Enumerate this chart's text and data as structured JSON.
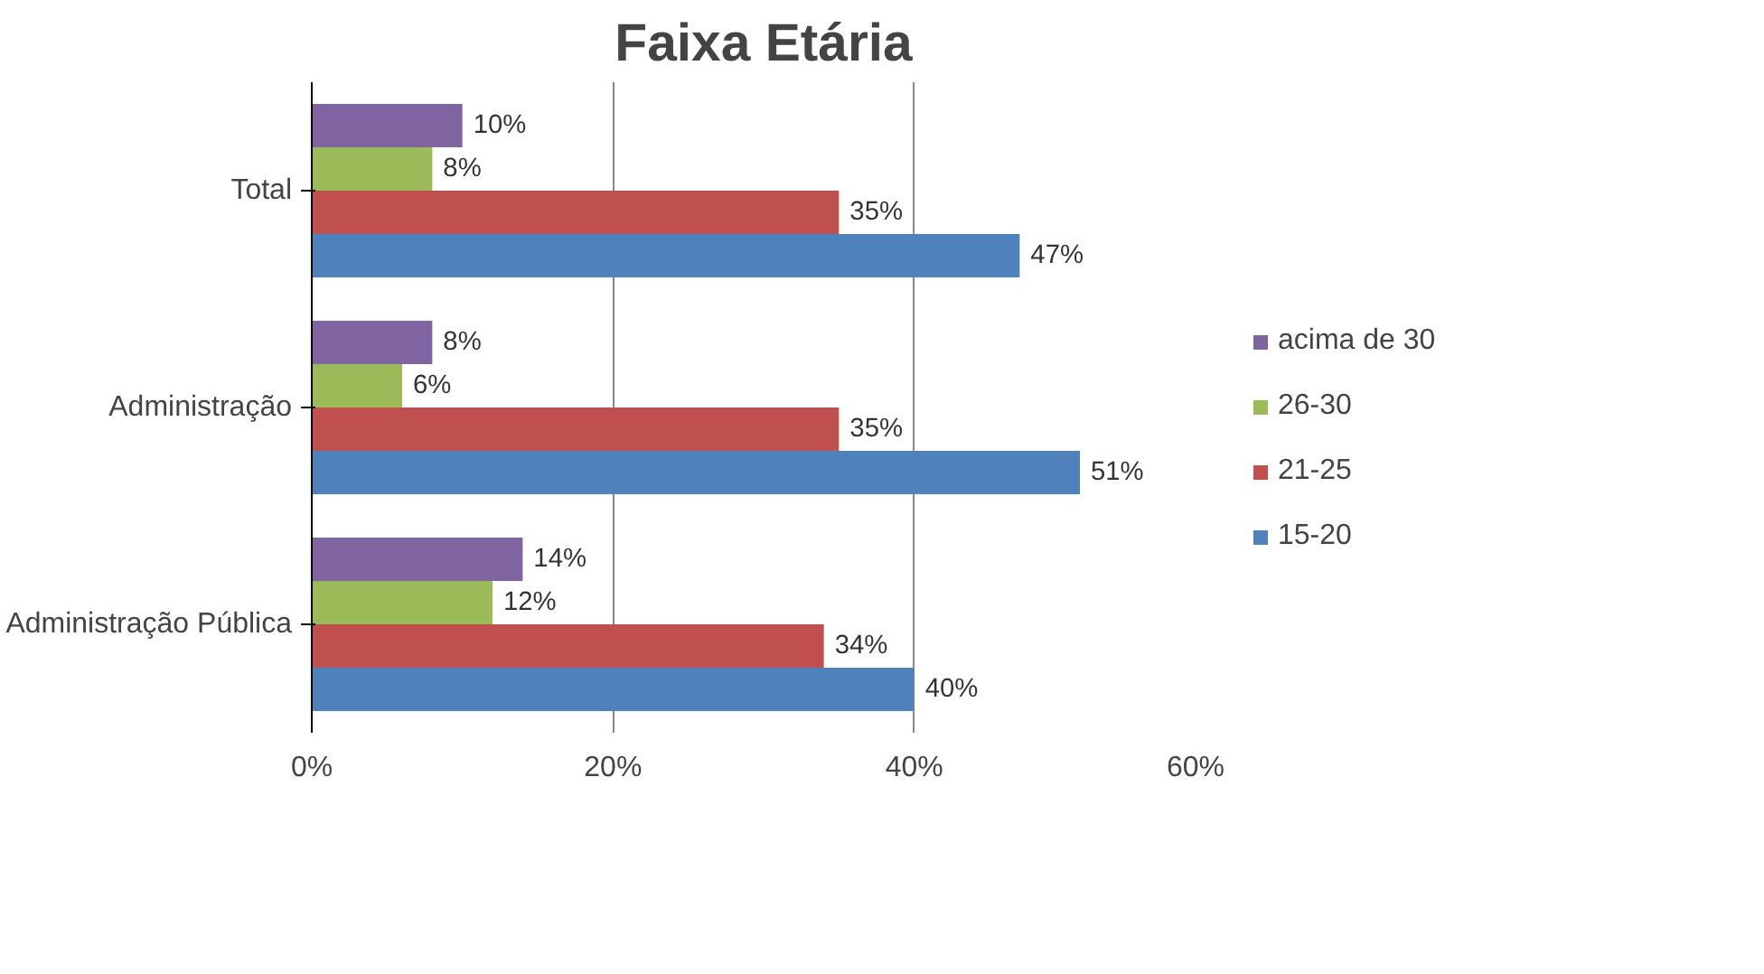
{
  "chart_data": {
    "type": "bar",
    "orientation": "horizontal",
    "title": "Faixa Etária",
    "categories": [
      "Total",
      "Administração",
      "Administração Pública"
    ],
    "series": [
      {
        "name": "acima de 30",
        "color": "#8064a2",
        "values": [
          10,
          8,
          14
        ],
        "value_labels": [
          "10%",
          "8%",
          "14%"
        ]
      },
      {
        "name": "26-30",
        "color": "#9bbb59",
        "values": [
          8,
          6,
          12
        ],
        "value_labels": [
          "8%",
          "6%",
          "12%"
        ]
      },
      {
        "name": "21-25",
        "color": "#c0504d",
        "values": [
          35,
          35,
          34
        ],
        "value_labels": [
          "35%",
          "35%",
          "34%"
        ]
      },
      {
        "name": "15-20",
        "color": "#4f81bd",
        "values": [
          47,
          51,
          40
        ],
        "value_labels": [
          "47%",
          "51%",
          "40%"
        ]
      }
    ],
    "xlim": [
      0,
      60
    ],
    "xticks": [
      {
        "value": 0,
        "label": "0%"
      },
      {
        "value": 20,
        "label": "20%"
      },
      {
        "value": 40,
        "label": "40%"
      },
      {
        "value": 60,
        "label": "60%"
      }
    ],
    "grid": "x",
    "legend": "right"
  }
}
